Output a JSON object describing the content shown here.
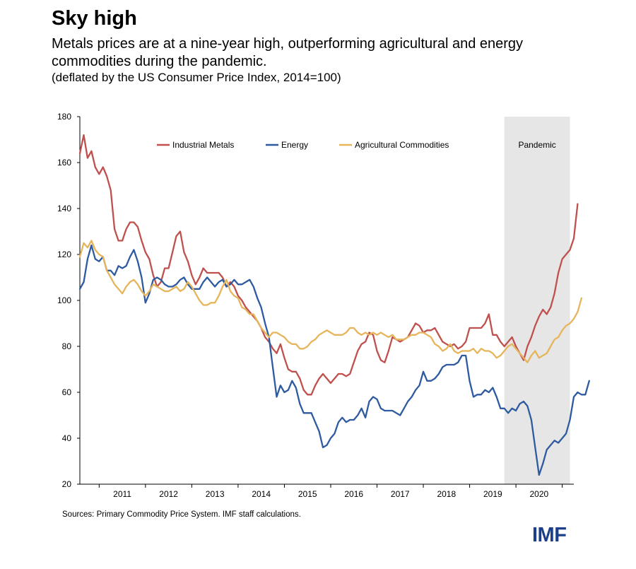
{
  "title": "Sky high",
  "subtitle": "Metals prices are at a nine-year high, outperforming agricultural and energy commodities during the pandemic.",
  "note": "(deflated by the US Consumer Price Index, 2014=100)",
  "source": "Sources: Primary Commodity Price System. IMF staff calculations.",
  "logo": "IMF",
  "chart_data": {
    "type": "line",
    "ylim": [
      20,
      180
    ],
    "yticks": [
      20,
      40,
      60,
      80,
      100,
      120,
      140,
      160,
      180
    ],
    "xlim": [
      2010.583,
      2021.25
    ],
    "xtick_labels": [
      "2011",
      "2012",
      "2013",
      "2014",
      "2015",
      "2016",
      "2017",
      "2018",
      "2019",
      "2020"
    ],
    "grid": false,
    "legend_position": "top",
    "shaded_region": {
      "label": "Pandemic",
      "x_start": 2019.75,
      "x_end": 2021.167,
      "color": "#e6e6e6"
    },
    "series": [
      {
        "name": "Industrial Metals",
        "color": "#c0504d",
        "start": 2010.583,
        "step": 0.08333,
        "values": [
          164,
          172,
          162,
          165,
          158,
          155,
          158,
          154,
          148,
          131,
          126,
          126,
          131,
          134,
          134,
          132,
          126,
          121,
          118,
          111,
          106,
          108,
          114,
          114,
          121,
          128,
          130,
          121,
          117,
          111,
          107,
          110,
          114,
          112,
          112,
          112,
          112,
          110,
          106,
          108,
          106,
          102,
          100,
          97,
          95,
          93,
          91,
          88,
          84,
          82,
          79,
          77,
          81,
          75,
          70,
          69,
          69,
          66,
          61,
          59,
          59,
          63,
          66,
          68,
          66,
          64,
          66,
          68,
          68,
          67,
          68,
          73,
          78,
          81,
          82,
          86,
          85,
          78,
          74,
          73,
          78,
          84,
          83,
          82,
          83,
          84,
          87,
          90,
          89,
          86,
          87,
          87,
          88,
          85,
          82,
          81,
          80,
          81,
          79,
          80,
          82,
          88,
          88,
          88,
          88,
          90,
          94,
          85,
          85,
          82,
          80,
          82,
          84,
          80,
          77,
          74,
          80,
          84,
          89,
          93,
          96,
          94,
          97,
          103,
          112,
          118,
          120,
          122,
          127,
          142
        ]
      },
      {
        "name": "Energy",
        "color": "#2e5aa0",
        "start": 2010.583,
        "step": 0.08333,
        "values": [
          105,
          108,
          118,
          124,
          118,
          117,
          119,
          113,
          113,
          111,
          115,
          114,
          115,
          119,
          122,
          117,
          110,
          99,
          103,
          109,
          110,
          109,
          107,
          106,
          106,
          107,
          109,
          110,
          107,
          105,
          105,
          105,
          108,
          110,
          108,
          106,
          108,
          109,
          106,
          107,
          109,
          107,
          107,
          108,
          109,
          106,
          101,
          97,
          90,
          84,
          71,
          58,
          63,
          60,
          61,
          65,
          62,
          55,
          51,
          51,
          51,
          47,
          43,
          36,
          37,
          40,
          42,
          47,
          49,
          47,
          48,
          48,
          50,
          53,
          49,
          56,
          58,
          57,
          53,
          52,
          52,
          52,
          51,
          50,
          53,
          56,
          58,
          61,
          63,
          69,
          65,
          65,
          66,
          68,
          71,
          72,
          72,
          72,
          73,
          76,
          76,
          65,
          58,
          59,
          59,
          61,
          60,
          62,
          58,
          53,
          53,
          51,
          53,
          52,
          55,
          56,
          54,
          48,
          36,
          24,
          29,
          35,
          37,
          39,
          38,
          40,
          42,
          48,
          58,
          60,
          59,
          59,
          65
        ]
      },
      {
        "name": "Agricultural Commodities",
        "color": "#e6b55b",
        "start": 2010.583,
        "step": 0.08333,
        "values": [
          119,
          125,
          123,
          126,
          122,
          120,
          119,
          113,
          110,
          107,
          105,
          103,
          106,
          108,
          109,
          107,
          104,
          102,
          104,
          107,
          106,
          105,
          104,
          104,
          105,
          106,
          104,
          105,
          108,
          106,
          103,
          100,
          98,
          98,
          99,
          99,
          102,
          106,
          109,
          104,
          102,
          101,
          97,
          96,
          94,
          94,
          91,
          88,
          86,
          84,
          86,
          86,
          85,
          84,
          82,
          81,
          81,
          79,
          79,
          80,
          82,
          83,
          85,
          86,
          87,
          86,
          85,
          85,
          85,
          86,
          88,
          88,
          86,
          85,
          86,
          85,
          86,
          85,
          86,
          85,
          84,
          85,
          83,
          83,
          83,
          84,
          85,
          85,
          86,
          86,
          85,
          84,
          81,
          80,
          78,
          79,
          81,
          78,
          77,
          78,
          78,
          78,
          79,
          77,
          79,
          78,
          78,
          77,
          75,
          76,
          78,
          80,
          81,
          79,
          77,
          75,
          73,
          76,
          78,
          75,
          76,
          77,
          80,
          83,
          84,
          87,
          89,
          90,
          92,
          95,
          101
        ]
      }
    ]
  }
}
